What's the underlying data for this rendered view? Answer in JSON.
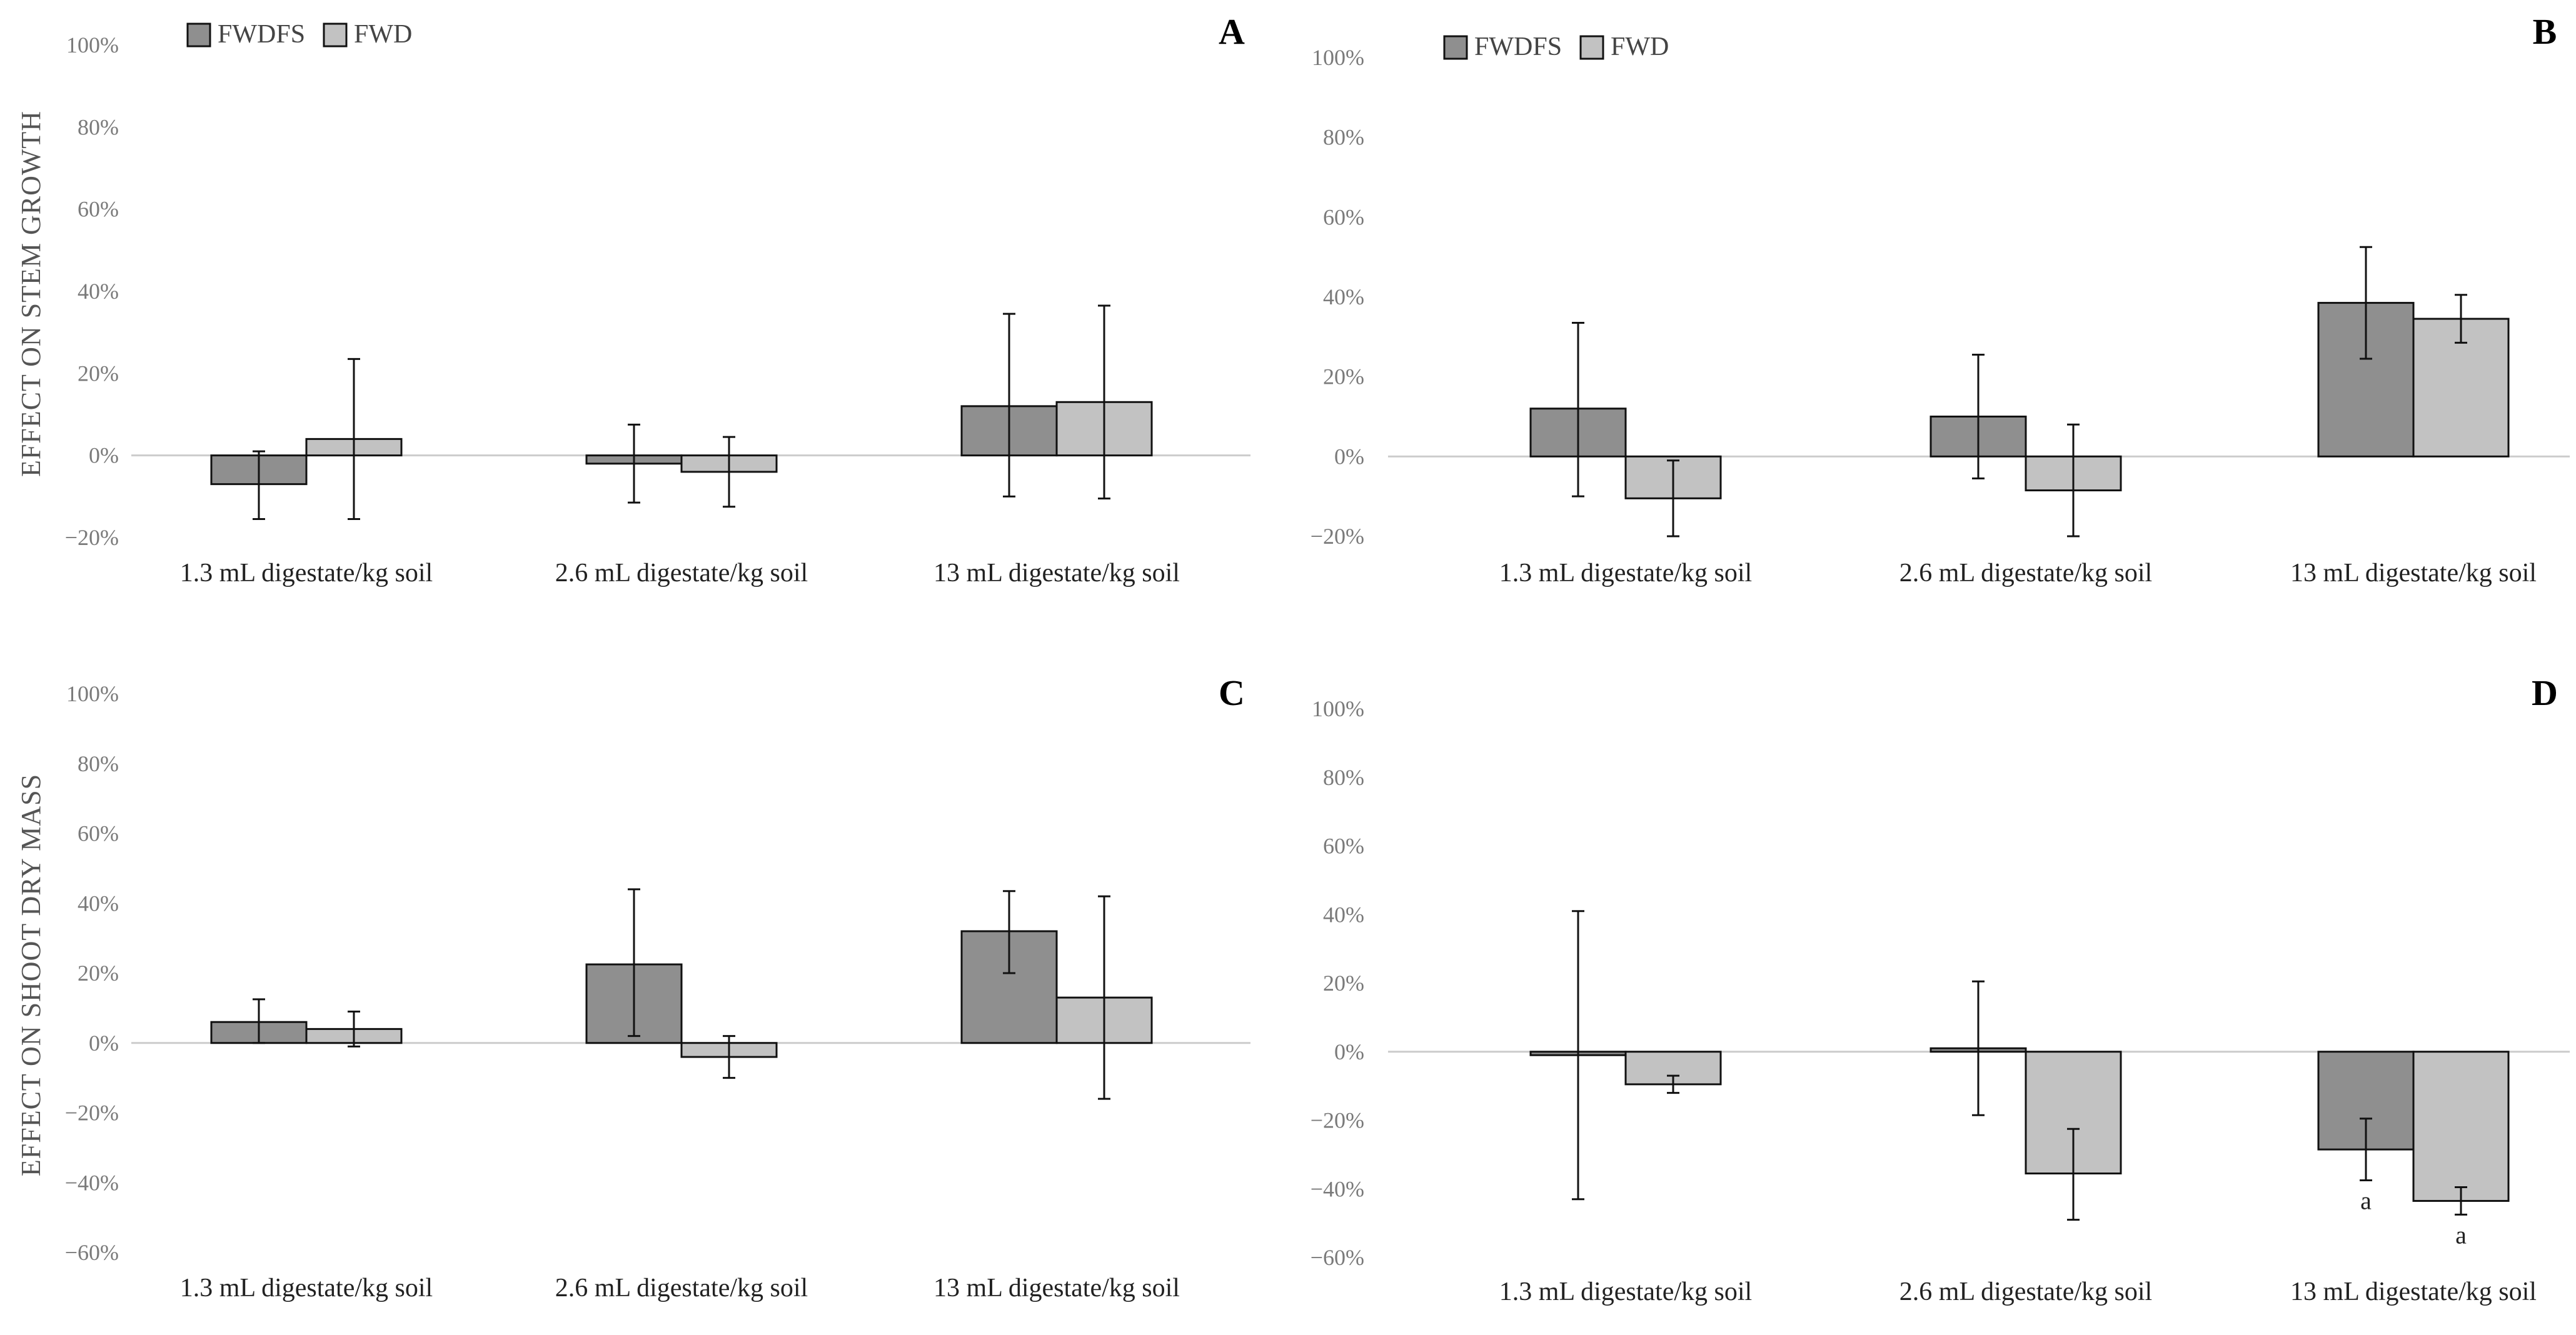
{
  "legend": {
    "series": [
      "FWDFS",
      "FWD"
    ]
  },
  "row_labels": [
    "EFFECT ON STEM GROWTH",
    "EFFECT ON SHOOT DRY MASS"
  ],
  "colors": {
    "FWDFS": "#8f8f8f",
    "FWD": "#c2c2c2",
    "axis": "#cccccc",
    "tick_text": "#7a7a7a",
    "text": "#222222"
  },
  "chart_data": [
    {
      "panel": "A",
      "type": "bar",
      "categories": [
        "1.3 mL digestate/kg soil",
        "2.6 mL digestate/kg soil",
        "13 mL digestate/kg soil"
      ],
      "series": [
        {
          "name": "FWDFS",
          "values": [
            -7,
            -2,
            12
          ],
          "err_low": [
            -15.5,
            -11.5,
            -10
          ],
          "err_high": [
            1,
            7.5,
            34.5
          ]
        },
        {
          "name": "FWD",
          "values": [
            4,
            -4,
            13
          ],
          "err_low": [
            -15.5,
            -12.5,
            -10.5
          ],
          "err_high": [
            23.5,
            4.5,
            36.5
          ]
        }
      ],
      "yticks": [
        "100%",
        "80%",
        "60%",
        "40%",
        "20%",
        "0%",
        "−20%"
      ],
      "ylim": [
        -20,
        100
      ],
      "legend": true,
      "annotations": []
    },
    {
      "panel": "B",
      "type": "bar",
      "categories": [
        "1.3 mL digestate/kg soil",
        "2.6 mL digestate/kg soil",
        "13 mL digestate/kg soil"
      ],
      "series": [
        {
          "name": "FWDFS",
          "values": [
            12,
            10,
            38.5
          ],
          "err_low": [
            -10,
            -5.5,
            24.5
          ],
          "err_high": [
            33.5,
            25.5,
            52.5
          ]
        },
        {
          "name": "FWD",
          "values": [
            -10.5,
            -8.5,
            34.5
          ],
          "err_low": [
            -20,
            -20,
            28.5
          ],
          "err_high": [
            -1,
            8,
            40.5
          ]
        }
      ],
      "yticks": [
        "100%",
        "80%",
        "60%",
        "40%",
        "20%",
        "0%",
        "−20%"
      ],
      "ylim": [
        -20,
        100
      ],
      "legend": true,
      "annotations": []
    },
    {
      "panel": "C",
      "type": "bar",
      "categories": [
        "1.3 mL digestate/kg soil",
        "2.6 mL digestate/kg soil",
        "13 mL digestate/kg soil"
      ],
      "series": [
        {
          "name": "FWDFS",
          "values": [
            6,
            22.5,
            32
          ],
          "err_low": [
            0,
            2,
            20
          ],
          "err_high": [
            12.5,
            44,
            43.5
          ]
        },
        {
          "name": "FWD",
          "values": [
            4,
            -4,
            13
          ],
          "err_low": [
            -1,
            -10,
            -16
          ],
          "err_high": [
            9,
            2,
            42
          ]
        }
      ],
      "yticks": [
        "100%",
        "80%",
        "60%",
        "40%",
        "20%",
        "0%",
        "−20%",
        "−40%",
        "−60%"
      ],
      "ylim": [
        -60,
        100
      ],
      "legend": false,
      "annotations": []
    },
    {
      "panel": "D",
      "type": "bar",
      "categories": [
        "1.3 mL digestate/kg soil",
        "2.6 mL digestate/kg soil",
        "13 mL digestate/kg soil"
      ],
      "series": [
        {
          "name": "FWDFS",
          "values": [
            -1,
            1,
            -28.5
          ],
          "err_low": [
            -43,
            -18.5,
            -37.5
          ],
          "err_high": [
            41,
            20.5,
            -19.5
          ]
        },
        {
          "name": "FWD",
          "values": [
            -9.5,
            -35.5,
            -43.5
          ],
          "err_low": [
            -12,
            -49,
            -47.5
          ],
          "err_high": [
            -7,
            -22.5,
            -39.5
          ]
        }
      ],
      "yticks": [
        "100%",
        "80%",
        "60%",
        "40%",
        "20%",
        "0%",
        "−20%",
        "−40%",
        "−60%"
      ],
      "ylim": [
        -60,
        100
      ],
      "legend": false,
      "annotations": [
        {
          "series": "FWDFS",
          "category": 2,
          "text": "a"
        },
        {
          "series": "FWD",
          "category": 2,
          "text": "a"
        }
      ]
    }
  ]
}
